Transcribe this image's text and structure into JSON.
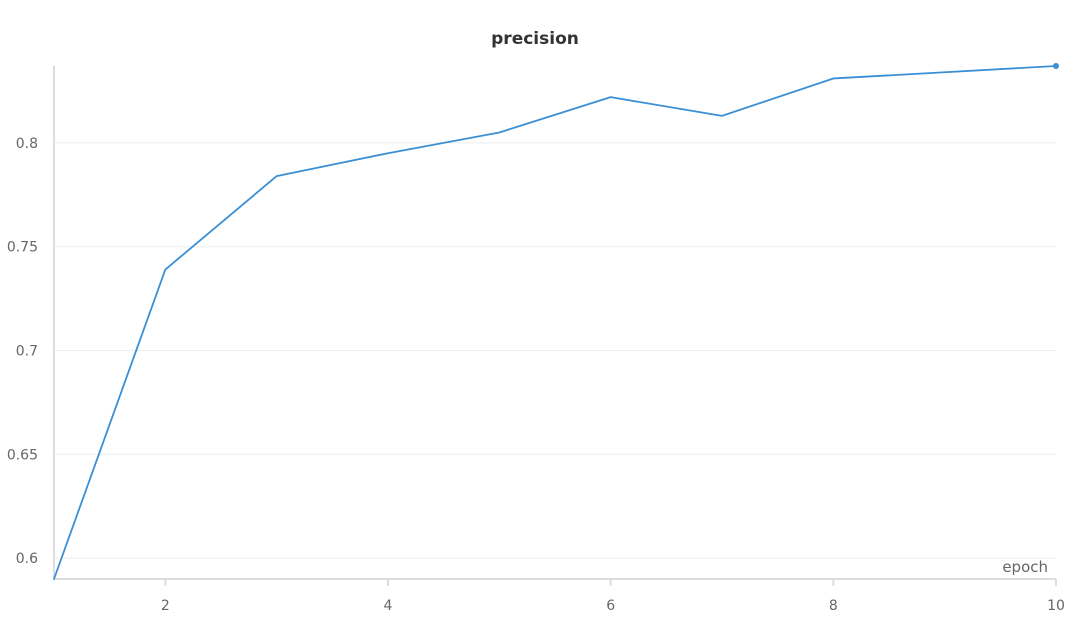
{
  "chart_data": {
    "type": "line",
    "title": "precision",
    "xlabel": "epoch",
    "ylabel": "",
    "xlim": [
      1,
      10
    ],
    "ylim": [
      0.59,
      0.837
    ],
    "xticks": [
      2,
      4,
      6,
      8,
      10
    ],
    "xtick_labels": [
      "2",
      "4",
      "6",
      "8",
      "10"
    ],
    "yticks": [
      0.6,
      0.65,
      0.7,
      0.75,
      0.8
    ],
    "ytick_labels": [
      "0.6",
      "0.65",
      "0.7",
      "0.75",
      "0.8"
    ],
    "grid": true,
    "series": [
      {
        "color": "#3b8fd4",
        "x": [
          1,
          2,
          3,
          4,
          5,
          6,
          7,
          8,
          9,
          10
        ],
        "values": [
          0.59,
          0.739,
          0.784,
          0.795,
          0.805,
          0.822,
          0.813,
          0.831,
          0.834,
          0.837
        ],
        "last_point_marker": true
      }
    ]
  }
}
